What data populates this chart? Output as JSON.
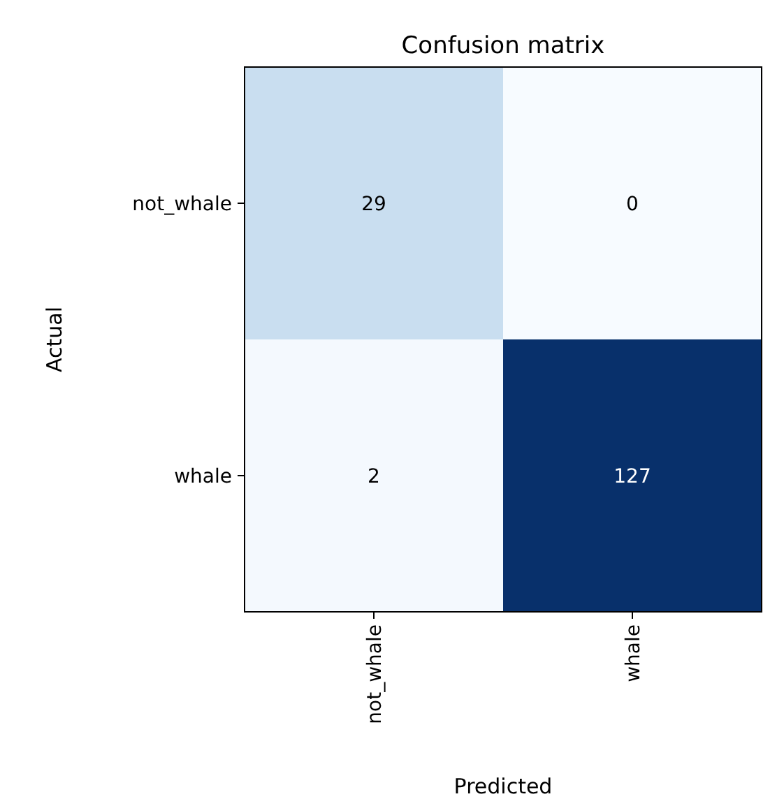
{
  "chart_data": {
    "type": "heatmap",
    "title": "Confusion matrix",
    "xlabel": "Predicted",
    "ylabel": "Actual",
    "categories": [
      "not_whale",
      "whale"
    ],
    "y_categories": [
      "not_whale",
      "whale"
    ],
    "cells": [
      [
        29,
        0
      ],
      [
        2,
        127
      ]
    ],
    "data_labels": true
  }
}
